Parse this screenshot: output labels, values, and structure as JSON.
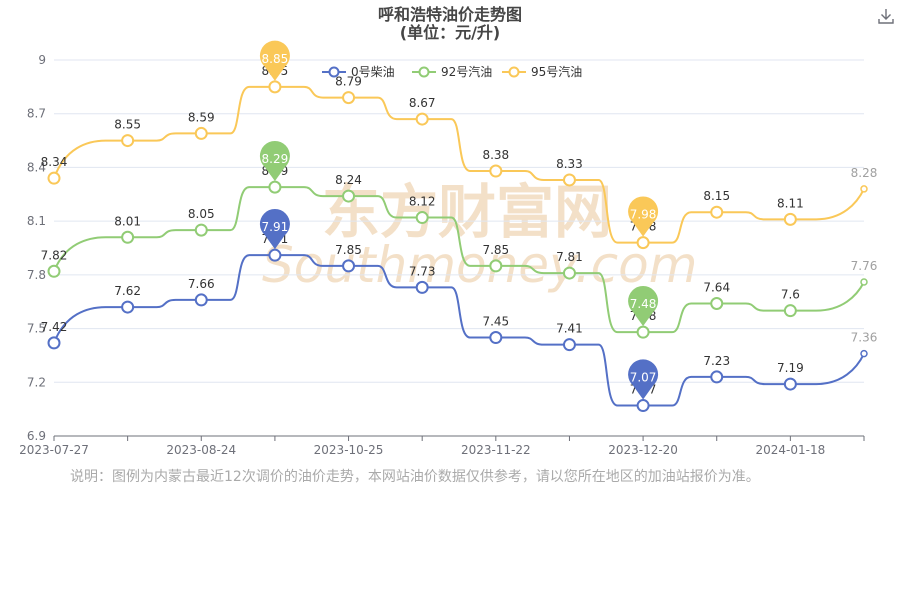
{
  "note": "说明：图例为内蒙古最近12次调价的油价走势，本网站油价数据仅供参考，请以您所在地区的加油站报价为准。",
  "watermark": {
    "cn": "东方财富网",
    "en": "Southmoney.com"
  },
  "chart_data": {
    "type": "line",
    "title": "呼和浩特油价走势图",
    "subtitle": "(单位：元/升)",
    "x_tick_labels": [
      "2023-07-27",
      "2023-08-24",
      "2023-10-25",
      "2023-11-22",
      "2023-12-20",
      "2024-01-18"
    ],
    "point_count": 12,
    "ylim": [
      6.9,
      9
    ],
    "y_ticks": [
      6.9,
      7.2,
      7.5,
      7.8,
      8.1,
      8.4,
      8.7,
      9
    ],
    "legend_position": "top",
    "series": [
      {
        "name": "0号柴油",
        "color": "#5470c6",
        "values": [
          7.42,
          7.62,
          7.66,
          7.91,
          7.85,
          7.73,
          7.45,
          7.41,
          7.07,
          7.23,
          7.19,
          7.36
        ],
        "max_index": 3,
        "min_index": 8
      },
      {
        "name": "92号汽油",
        "color": "#91cc75",
        "values": [
          7.82,
          8.01,
          8.05,
          8.29,
          8.24,
          8.12,
          7.85,
          7.81,
          7.48,
          7.64,
          7.6,
          7.76
        ],
        "max_index": 3,
        "min_index": 8
      },
      {
        "name": "95号汽油",
        "color": "#fac858",
        "values": [
          8.34,
          8.55,
          8.59,
          8.85,
          8.79,
          8.67,
          8.38,
          8.33,
          7.98,
          8.15,
          8.11,
          8.28
        ],
        "max_index": 3,
        "min_index": 8
      }
    ]
  }
}
